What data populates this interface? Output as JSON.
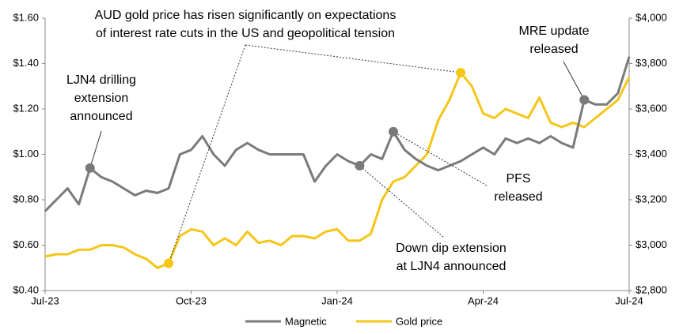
{
  "chart_data": {
    "type": "line",
    "categories": [
      "Jul-23",
      null,
      null,
      null,
      null,
      null,
      null,
      null,
      null,
      null,
      null,
      null,
      null,
      "Oct-23",
      null,
      null,
      null,
      null,
      null,
      null,
      null,
      null,
      null,
      null,
      null,
      null,
      "Jan-24",
      null,
      null,
      null,
      null,
      null,
      null,
      null,
      null,
      null,
      null,
      null,
      null,
      "Apr-24",
      null,
      null,
      null,
      null,
      null,
      null,
      null,
      null,
      null,
      null,
      null,
      null,
      "Jul-24"
    ],
    "series": [
      {
        "name": "Magnetic",
        "color": "#7a7a7a",
        "axis": "y",
        "values": [
          0.75,
          0.8,
          0.85,
          0.78,
          0.94,
          0.9,
          0.88,
          0.85,
          0.82,
          0.84,
          0.83,
          0.85,
          1.0,
          1.02,
          1.08,
          1.0,
          0.95,
          1.02,
          1.05,
          1.02,
          1.0,
          1.0,
          1.0,
          1.0,
          0.88,
          0.95,
          1.0,
          0.97,
          0.95,
          1.0,
          0.98,
          1.1,
          1.02,
          0.98,
          0.95,
          0.93,
          0.95,
          0.97,
          1.0,
          1.03,
          1.0,
          1.07,
          1.05,
          1.07,
          1.05,
          1.08,
          1.05,
          1.03,
          1.24,
          1.22,
          1.22,
          1.27,
          1.43
        ]
      },
      {
        "name": "Gold price",
        "color": "#f5c518",
        "axis": "y2",
        "values": [
          2950,
          2960,
          2960,
          2980,
          2980,
          3000,
          3000,
          2990,
          2960,
          2940,
          2900,
          2920,
          3040,
          3070,
          3060,
          3000,
          3030,
          3000,
          3060,
          3010,
          3020,
          3000,
          3040,
          3040,
          3030,
          3060,
          3070,
          3020,
          3020,
          3050,
          3200,
          3280,
          3300,
          3350,
          3400,
          3550,
          3640,
          3760,
          3700,
          3580,
          3560,
          3600,
          3580,
          3560,
          3650,
          3540,
          3520,
          3540,
          3520,
          3560,
          3600,
          3640,
          3740
        ]
      }
    ],
    "ylim": [
      0.4,
      1.6
    ],
    "yticks": [
      {
        "value": 0.4,
        "label": "$0.40"
      },
      {
        "value": 0.6,
        "label": "$0.60"
      },
      {
        "value": 0.8,
        "label": "$0.80"
      },
      {
        "value": 1.0,
        "label": "$1.00"
      },
      {
        "value": 1.2,
        "label": "$1.20"
      },
      {
        "value": 1.4,
        "label": "$1.40"
      },
      {
        "value": 1.6,
        "label": "$1.60"
      }
    ],
    "y2lim": [
      2800,
      4000
    ],
    "y2ticks": [
      {
        "value": 2800,
        "label": "$2,800"
      },
      {
        "value": 3000,
        "label": "$3,000"
      },
      {
        "value": 3200,
        "label": "$3,200"
      },
      {
        "value": 3400,
        "label": "$3,400"
      },
      {
        "value": 3600,
        "label": "$3,600"
      },
      {
        "value": 3800,
        "label": "$3,800"
      },
      {
        "value": 4000,
        "label": "$4,000"
      }
    ],
    "legend": "bottom",
    "annotations": [
      [
        "LJN4 drilling",
        "extension",
        "announced"
      ],
      [
        "AUD gold price has risen significantly on expectations",
        "of interest rate cuts in the US and geopolitical tension"
      ],
      [
        "MRE update",
        "released"
      ],
      [
        "PFS",
        "released"
      ],
      [
        "Down dip extension",
        "at LJN4 announced"
      ]
    ]
  }
}
